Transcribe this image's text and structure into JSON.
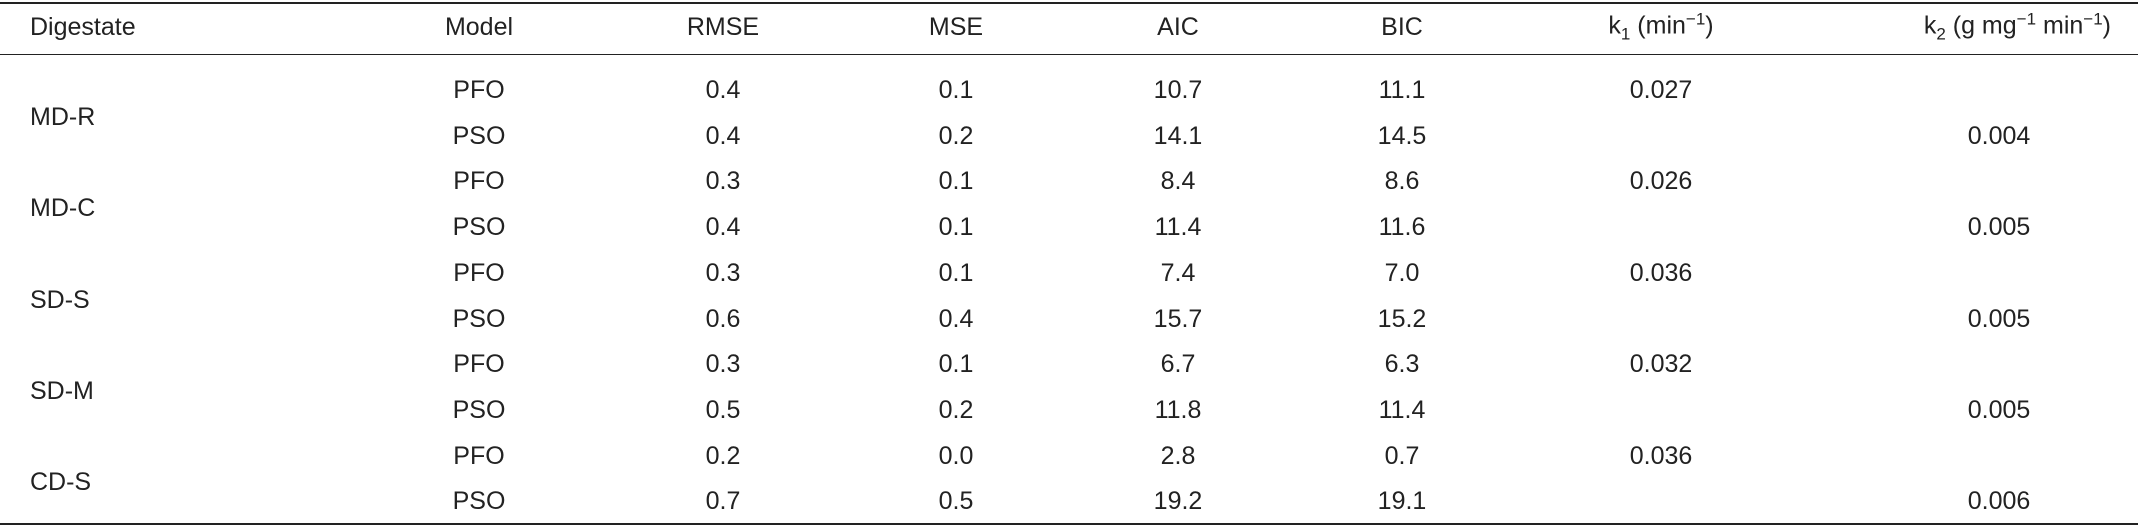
{
  "table": {
    "columns": [
      [
        {
          "text": "Digestate"
        }
      ],
      [
        {
          "text": "Model"
        }
      ],
      [
        {
          "text": "RMSE"
        }
      ],
      [
        {
          "text": "MSE"
        }
      ],
      [
        {
          "text": "AIC"
        }
      ],
      [
        {
          "text": "BIC"
        }
      ],
      [
        {
          "text": "k"
        },
        {
          "text": "1",
          "style": "sub"
        },
        {
          "text": " (min"
        },
        {
          "text": "−1",
          "style": "sup"
        },
        {
          "text": ")"
        }
      ],
      [
        {
          "text": "k"
        },
        {
          "text": "2",
          "style": "sub"
        },
        {
          "text": " (g mg"
        },
        {
          "text": "−1",
          "style": "sup"
        },
        {
          "text": " min"
        },
        {
          "text": "−1",
          "style": "sup"
        },
        {
          "text": ")"
        }
      ]
    ],
    "groups": [
      {
        "digestate": "MD-R",
        "rows": [
          {
            "model": "PFO",
            "rmse": "0.4",
            "mse": "0.1",
            "aic": "10.7",
            "bic": "11.1",
            "k1": "0.027"
          },
          {
            "model": "PSO",
            "rmse": "0.4",
            "mse": "0.2",
            "aic": "14.1",
            "bic": "14.5",
            "k2": "0.004"
          }
        ]
      },
      {
        "digestate": "MD-C",
        "rows": [
          {
            "model": "PFO",
            "rmse": "0.3",
            "mse": "0.1",
            "aic": "8.4",
            "bic": "8.6",
            "k1": "0.026"
          },
          {
            "model": "PSO",
            "rmse": "0.4",
            "mse": "0.1",
            "aic": "11.4",
            "bic": "11.6",
            "k2": "0.005"
          }
        ]
      },
      {
        "digestate": "SD-S",
        "rows": [
          {
            "model": "PFO",
            "rmse": "0.3",
            "mse": "0.1",
            "aic": "7.4",
            "bic": "7.0",
            "k1": "0.036"
          },
          {
            "model": "PSO",
            "rmse": "0.6",
            "mse": "0.4",
            "aic": "15.7",
            "bic": "15.2",
            "k2": "0.005"
          }
        ]
      },
      {
        "digestate": "SD-M",
        "rows": [
          {
            "model": "PFO",
            "rmse": "0.3",
            "mse": "0.1",
            "aic": "6.7",
            "bic": "6.3",
            "k1": "0.032"
          },
          {
            "model": "PSO",
            "rmse": "0.5",
            "mse": "0.2",
            "aic": "11.8",
            "bic": "11.4",
            "k2": "0.005"
          }
        ]
      },
      {
        "digestate": "CD-S",
        "rows": [
          {
            "model": "PFO",
            "rmse": "0.2",
            "mse": "0.0",
            "aic": "2.8",
            "bic": "0.7",
            "k1": "0.036"
          },
          {
            "model": "PSO",
            "rmse": "0.7",
            "mse": "0.5",
            "aic": "19.2",
            "bic": "19.1",
            "k2": "0.006"
          }
        ]
      }
    ]
  }
}
